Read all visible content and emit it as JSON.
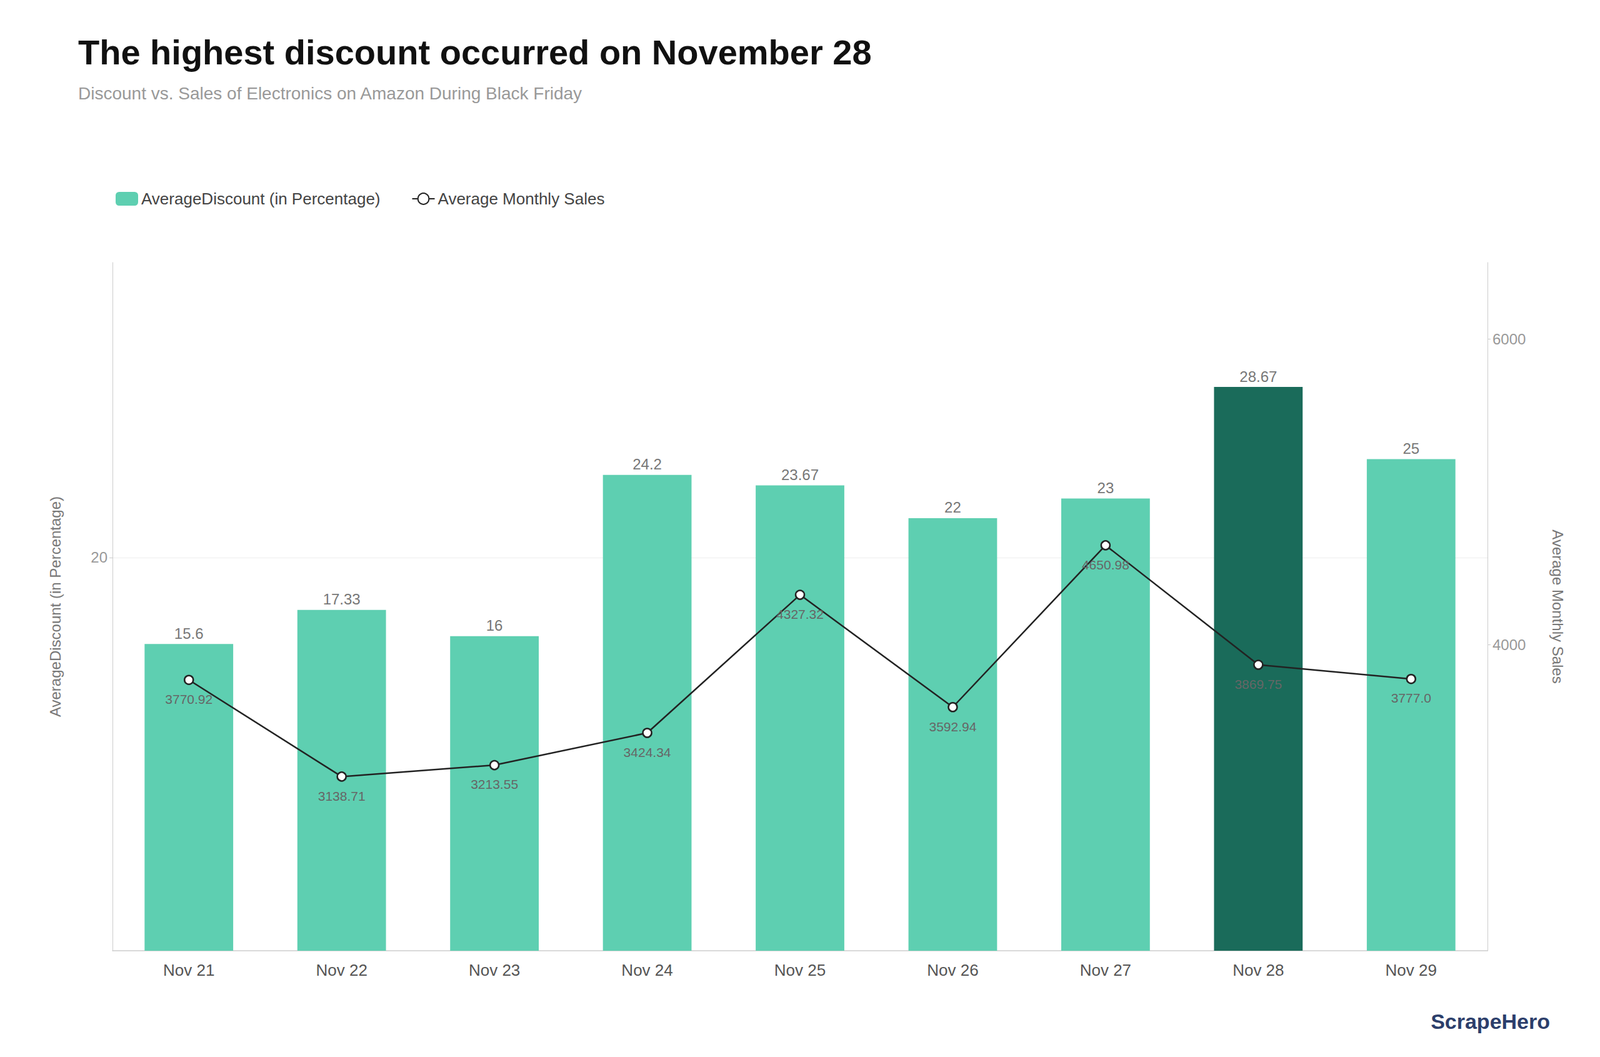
{
  "chart_data": {
    "type": "bar",
    "title": "The highest discount occurred on November 28",
    "subtitle": "Discount vs. Sales of Electronics on Amazon During Black Friday",
    "categories": [
      "Nov 21",
      "Nov 22",
      "Nov 23",
      "Nov 24",
      "Nov 25",
      "Nov 26",
      "Nov 27",
      "Nov 28",
      "Nov 29"
    ],
    "series": [
      {
        "name": "AverageDiscount (in Percentage)",
        "type": "bar",
        "color": "#5ECFB1",
        "colors": [
          "#5ECFB1",
          "#5ECFB1",
          "#5ECFB1",
          "#5ECFB1",
          "#5ECFB1",
          "#5ECFB1",
          "#5ECFB1",
          "#1A6B5A",
          "#5ECFB1"
        ],
        "values": [
          15.6,
          17.33,
          16,
          24.2,
          23.67,
          22,
          23,
          28.67,
          25
        ],
        "data_labels": true
      },
      {
        "name": "Average Monthly Sales",
        "type": "line",
        "axis": "y2",
        "color": "#222222",
        "marker": "circle",
        "line_style": "solid",
        "values": [
          3770.92,
          3138.71,
          3213.55,
          3424.34,
          4327.32,
          3592.94,
          4650.98,
          3869.75,
          3777
        ],
        "value_labels": [
          "3770.92",
          "3138.71",
          "3213.55",
          "3424.34",
          "4327.32",
          "3592.94",
          "4650.98",
          "3869.75",
          "3777.0"
        ],
        "data_labels": true
      }
    ],
    "ylabel": "AverageDiscount (in Percentage)",
    "y2label": "Average Monthly Sales",
    "ylim": [
      0,
      35
    ],
    "yticks": [
      20
    ],
    "y2lim": [
      2000,
      6500
    ],
    "y2ticks": [
      4000,
      6000
    ],
    "grid": true,
    "legend": "upper left",
    "annotations": [
      {
        "text": "ScrapeHero",
        "color": "#2C3E6B"
      }
    ]
  }
}
